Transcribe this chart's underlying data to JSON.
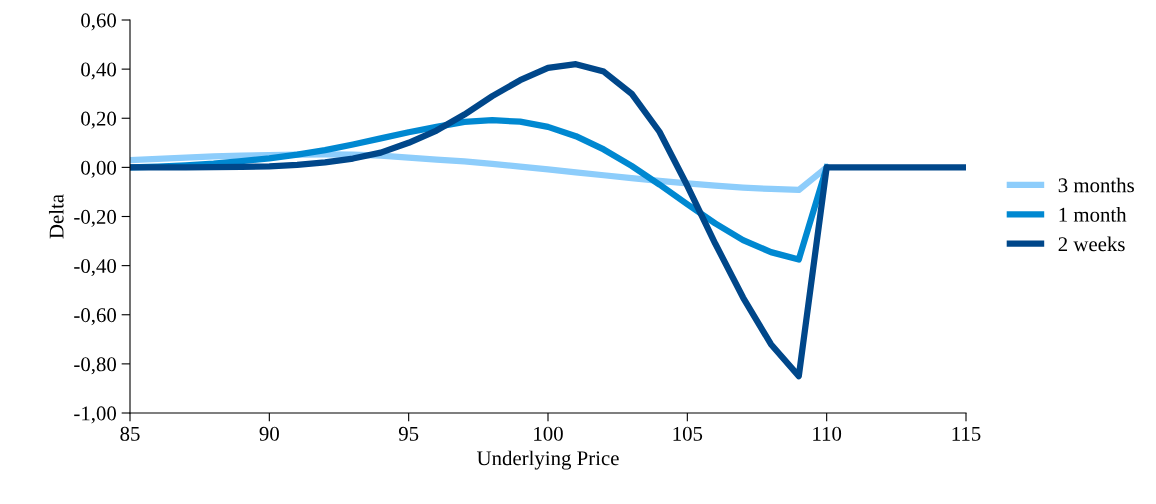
{
  "chart_data": {
    "type": "line",
    "xlabel": "Underlying Price",
    "ylabel": "Delta",
    "x": [
      85,
      86,
      87,
      88,
      89,
      90,
      91,
      92,
      93,
      94,
      95,
      96,
      97,
      98,
      99,
      100,
      101,
      102,
      103,
      104,
      105,
      106,
      107,
      108,
      109,
      110,
      111,
      112,
      113,
      114,
      115
    ],
    "series": [
      {
        "name": "3 months",
        "color": "#8dcdfb",
        "values": [
          0.03,
          0.035,
          0.04,
          0.045,
          0.048,
          0.05,
          0.052,
          0.053,
          0.052,
          0.048,
          0.04,
          0.032,
          0.024,
          0.014,
          0.003,
          -0.008,
          -0.02,
          -0.032,
          -0.044,
          -0.055,
          -0.065,
          -0.074,
          -0.082,
          -0.088,
          -0.092,
          0,
          null,
          null,
          null,
          null,
          null
        ]
      },
      {
        "name": "1 month",
        "color": "#0088d1",
        "values": [
          0,
          0.003,
          0.008,
          0.015,
          0.025,
          0.037,
          0.052,
          0.07,
          0.093,
          0.118,
          0.143,
          0.165,
          0.185,
          0.192,
          0.186,
          0.165,
          0.127,
          0.073,
          0.006,
          -0.07,
          -0.15,
          -0.228,
          -0.296,
          -0.345,
          -0.375,
          0,
          null,
          null,
          null,
          null,
          null
        ]
      },
      {
        "name": "2 weeks",
        "color": "#00478a",
        "values": [
          0,
          0,
          0,
          0.001,
          0.002,
          0.004,
          0.01,
          0.02,
          0.036,
          0.06,
          0.1,
          0.15,
          0.215,
          0.29,
          0.355,
          0.405,
          0.42,
          0.39,
          0.3,
          0.145,
          -0.075,
          -0.31,
          -0.53,
          -0.72,
          -0.85,
          0,
          0,
          0,
          0,
          0,
          0
        ]
      }
    ],
    "xlim": [
      85,
      115
    ],
    "xticks": [
      85,
      90,
      95,
      100,
      105,
      110,
      115
    ],
    "ylim": [
      -1.0,
      0.6
    ],
    "yticks": [
      {
        "value": -1.0,
        "label": "-1,00"
      },
      {
        "value": -0.8,
        "label": "-0,80"
      },
      {
        "value": -0.6,
        "label": "-0,60"
      },
      {
        "value": -0.4,
        "label": "-0,40"
      },
      {
        "value": -0.2,
        "label": "-0,20"
      },
      {
        "value": 0,
        "label": "0,00"
      },
      {
        "value": 0.2,
        "label": "0,20"
      },
      {
        "value": 0.4,
        "label": "0,40"
      },
      {
        "value": 0.6,
        "label": "0,60"
      }
    ],
    "grid": false,
    "legend": "right",
    "marker": "none",
    "line_style": "solid"
  }
}
